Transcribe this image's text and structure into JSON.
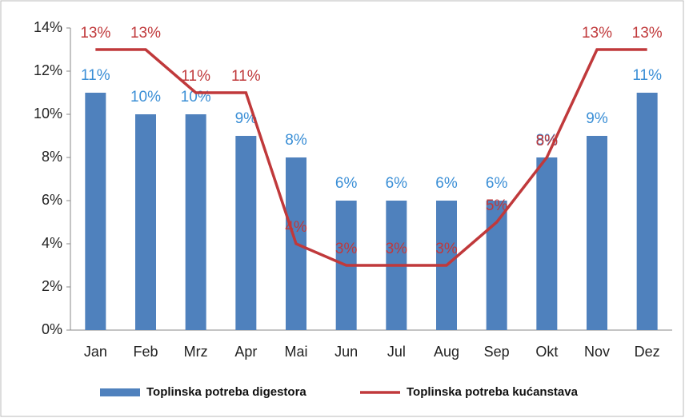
{
  "chart_data": {
    "type": "bar",
    "categories": [
      "Jan",
      "Feb",
      "Mrz",
      "Apr",
      "Mai",
      "Jun",
      "Jul",
      "Aug",
      "Sep",
      "Okt",
      "Nov",
      "Dez"
    ],
    "series": [
      {
        "name": "Toplinska potreba digestora",
        "type": "bar",
        "color": "#4f81bd",
        "label_color": "#3b8fd6",
        "values": [
          11,
          10,
          10,
          9,
          8,
          6,
          6,
          6,
          6,
          8,
          9,
          11
        ],
        "value_labels": [
          "11%",
          "10%",
          "10%",
          "9%",
          "8%",
          "6%",
          "6%",
          "6%",
          "6%",
          "8%",
          "9%",
          "11%"
        ]
      },
      {
        "name": "Toplinska potreba kućanstava",
        "type": "line",
        "color": "#c0393b",
        "label_color": "#c0393b",
        "values": [
          13,
          13,
          11,
          11,
          4,
          3,
          3,
          3,
          5,
          8,
          13,
          13
        ],
        "value_labels": [
          "13%",
          "13%",
          "11%",
          "11%",
          "4%",
          "3%",
          "3%",
          "3%",
          "5%",
          "8%",
          "13%",
          "13%"
        ]
      }
    ],
    "ylim": [
      0,
      14
    ],
    "yticks": [
      {
        "value": 0,
        "label": "0%"
      },
      {
        "value": 2,
        "label": "2%"
      },
      {
        "value": 4,
        "label": "4%"
      },
      {
        "value": 6,
        "label": "6%"
      },
      {
        "value": 8,
        "label": "8%"
      },
      {
        "value": 10,
        "label": "10%"
      },
      {
        "value": 12,
        "label": "12%"
      },
      {
        "value": 14,
        "label": "14%"
      }
    ],
    "legend": "bottom"
  }
}
